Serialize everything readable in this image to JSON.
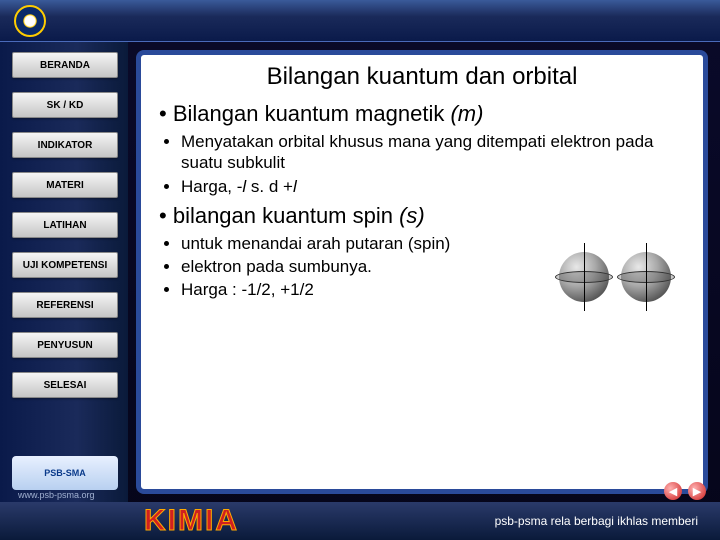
{
  "header": {
    "logo_name": "tut-wuri-logo"
  },
  "sidebar": {
    "items": [
      {
        "label": "BERANDA",
        "name": "nav-beranda"
      },
      {
        "label": "SK / KD",
        "name": "nav-sk-kd"
      },
      {
        "label": "INDIKATOR",
        "name": "nav-indikator"
      },
      {
        "label": "MATERI",
        "name": "nav-materi"
      },
      {
        "label": "LATIHAN",
        "name": "nav-latihan"
      },
      {
        "label": "UJI KOMPETENSI",
        "name": "nav-uji-kompetensi"
      },
      {
        "label": "REFERENSI",
        "name": "nav-referensi"
      },
      {
        "label": "PENYUSUN",
        "name": "nav-penyusun"
      },
      {
        "label": "SELESAI",
        "name": "nav-selesai"
      }
    ],
    "brand": "PSB-SMA"
  },
  "content": {
    "title": "Bilangan kuantum dan orbital",
    "section1": {
      "heading_prefix": "Bilangan kuantum magnetik ",
      "heading_suffix": "(m)",
      "points": [
        "Menyatakan orbital khusus mana yang ditempati elektron pada suatu subkulit",
        "Harga, -l s. d +l"
      ]
    },
    "section2": {
      "heading_prefix": "bilangan kuantum spin  ",
      "heading_suffix": "(s)",
      "points": [
        "untuk menandai arah putaran (spin)",
        "elektron pada sumbunya.",
        "Harga : -1/2, +1/2"
      ]
    }
  },
  "footer": {
    "subject": "KIMIA",
    "tagline": "psb-psma rela berbagi ikhlas memberi",
    "url": "www.psb-psma.org",
    "prev": "◀",
    "next": "▶"
  },
  "colors": {
    "panel_border": "#2a4a9a",
    "bg_dark": "#0a1a3a",
    "kimia": "#d02020"
  }
}
